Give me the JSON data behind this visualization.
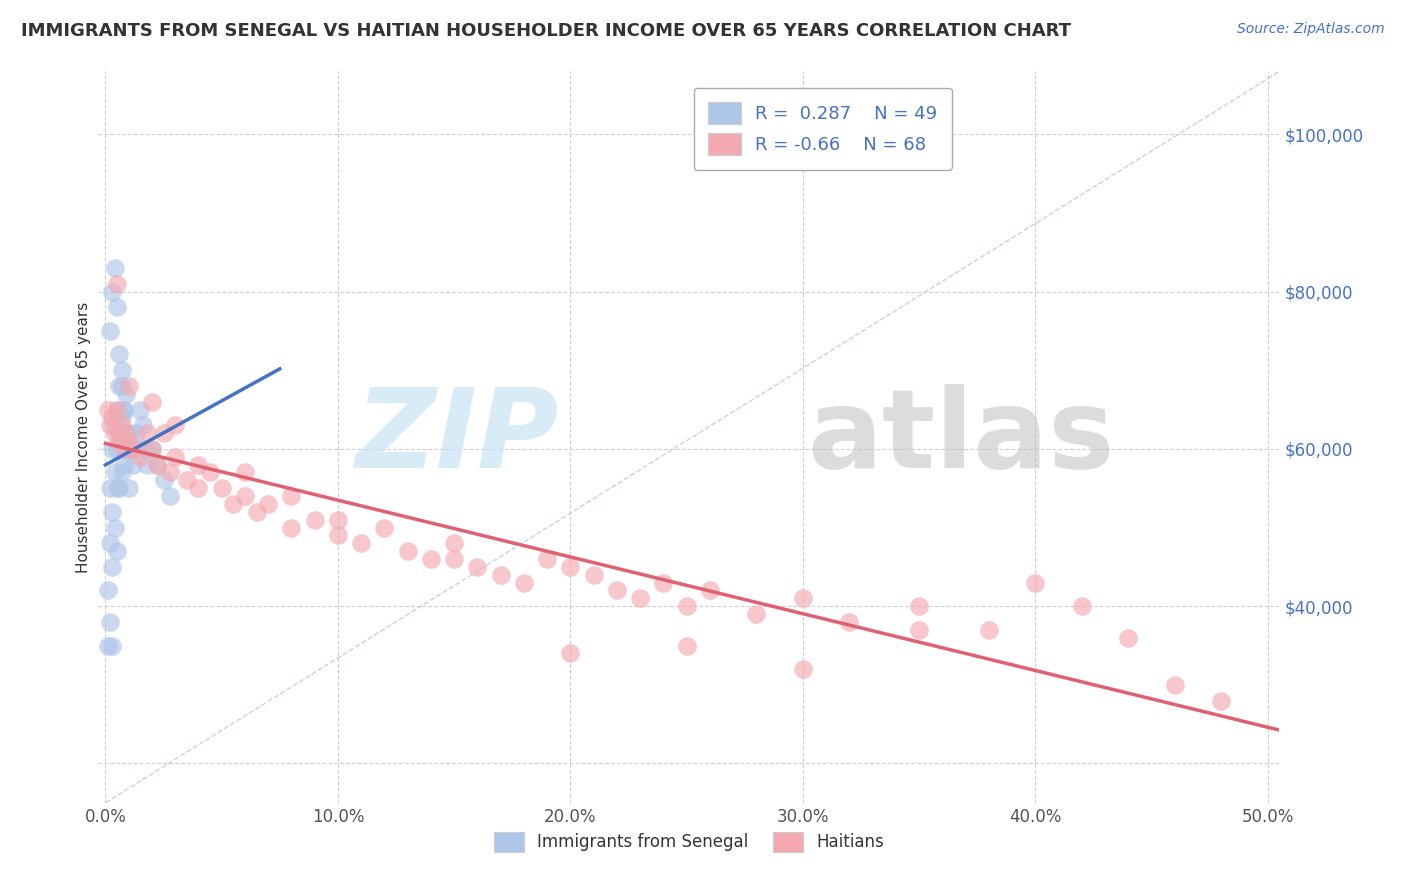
{
  "title": "IMMIGRANTS FROM SENEGAL VS HAITIAN HOUSEHOLDER INCOME OVER 65 YEARS CORRELATION CHART",
  "source": "Source: ZipAtlas.com",
  "ylabel": "Householder Income Over 65 years",
  "xlim_min": -0.003,
  "xlim_max": 0.505,
  "ylim_min": 15000,
  "ylim_max": 108000,
  "xticks": [
    0.0,
    0.1,
    0.2,
    0.3,
    0.4,
    0.5
  ],
  "xticklabels": [
    "0.0%",
    "10.0%",
    "20.0%",
    "30.0%",
    "40.0%",
    "50.0%"
  ],
  "yticks": [
    20000,
    40000,
    60000,
    80000,
    100000
  ],
  "yticklabels": [
    "",
    "$40,000",
    "$60,000",
    "$80,000",
    "$100,000"
  ],
  "senegal_R": 0.287,
  "senegal_N": 49,
  "haitian_R": -0.66,
  "haitian_N": 68,
  "senegal_color": "#aec6e8",
  "haitian_color": "#f4a9b0",
  "senegal_line_color": "#4472c4",
  "haitian_line_color": "#e06070",
  "ref_line_color": "#b8d0e8",
  "background_color": "#ffffff",
  "title_fontsize": 13,
  "tick_fontsize": 12,
  "legend_fontsize": 13,
  "source_fontsize": 10,
  "scatter_size": 180,
  "scatter_alpha": 0.65,
  "line_width": 2.5,
  "senegal_x": [
    0.001,
    0.001,
    0.002,
    0.002,
    0.002,
    0.003,
    0.003,
    0.003,
    0.003,
    0.004,
    0.004,
    0.004,
    0.005,
    0.005,
    0.005,
    0.005,
    0.006,
    0.006,
    0.006,
    0.007,
    0.007,
    0.007,
    0.008,
    0.008,
    0.009,
    0.009,
    0.01,
    0.01,
    0.011,
    0.012,
    0.013,
    0.014,
    0.015,
    0.016,
    0.017,
    0.018,
    0.02,
    0.022,
    0.025,
    0.028,
    0.002,
    0.003,
    0.004,
    0.005,
    0.006,
    0.007,
    0.008,
    0.009,
    0.01
  ],
  "senegal_y": [
    42000,
    35000,
    55000,
    48000,
    38000,
    60000,
    52000,
    45000,
    35000,
    63000,
    57000,
    50000,
    65000,
    60000,
    55000,
    47000,
    68000,
    62000,
    55000,
    70000,
    64000,
    57000,
    65000,
    58000,
    67000,
    60000,
    62000,
    55000,
    60000,
    58000,
    62000,
    60000,
    65000,
    63000,
    60000,
    58000,
    60000,
    58000,
    56000,
    54000,
    75000,
    80000,
    83000,
    78000,
    72000,
    68000,
    65000,
    62000,
    60000
  ],
  "haitian_x": [
    0.001,
    0.002,
    0.003,
    0.004,
    0.005,
    0.006,
    0.007,
    0.008,
    0.009,
    0.01,
    0.012,
    0.015,
    0.018,
    0.02,
    0.022,
    0.025,
    0.028,
    0.03,
    0.035,
    0.04,
    0.045,
    0.05,
    0.055,
    0.06,
    0.065,
    0.07,
    0.08,
    0.09,
    0.1,
    0.11,
    0.12,
    0.13,
    0.14,
    0.15,
    0.16,
    0.17,
    0.18,
    0.19,
    0.2,
    0.21,
    0.22,
    0.23,
    0.24,
    0.25,
    0.26,
    0.28,
    0.3,
    0.32,
    0.35,
    0.38,
    0.005,
    0.01,
    0.02,
    0.03,
    0.04,
    0.06,
    0.08,
    0.1,
    0.15,
    0.2,
    0.25,
    0.3,
    0.35,
    0.4,
    0.42,
    0.44,
    0.46,
    0.48
  ],
  "haitian_y": [
    65000,
    63000,
    64000,
    62000,
    65000,
    61000,
    63000,
    60000,
    62000,
    61000,
    60000,
    59000,
    62000,
    60000,
    58000,
    62000,
    57000,
    59000,
    56000,
    55000,
    57000,
    55000,
    53000,
    54000,
    52000,
    53000,
    50000,
    51000,
    49000,
    48000,
    50000,
    47000,
    46000,
    48000,
    45000,
    44000,
    43000,
    46000,
    45000,
    44000,
    42000,
    41000,
    43000,
    40000,
    42000,
    39000,
    41000,
    38000,
    40000,
    37000,
    81000,
    68000,
    66000,
    63000,
    58000,
    57000,
    54000,
    51000,
    46000,
    34000,
    35000,
    32000,
    37000,
    43000,
    40000,
    36000,
    30000,
    28000
  ]
}
